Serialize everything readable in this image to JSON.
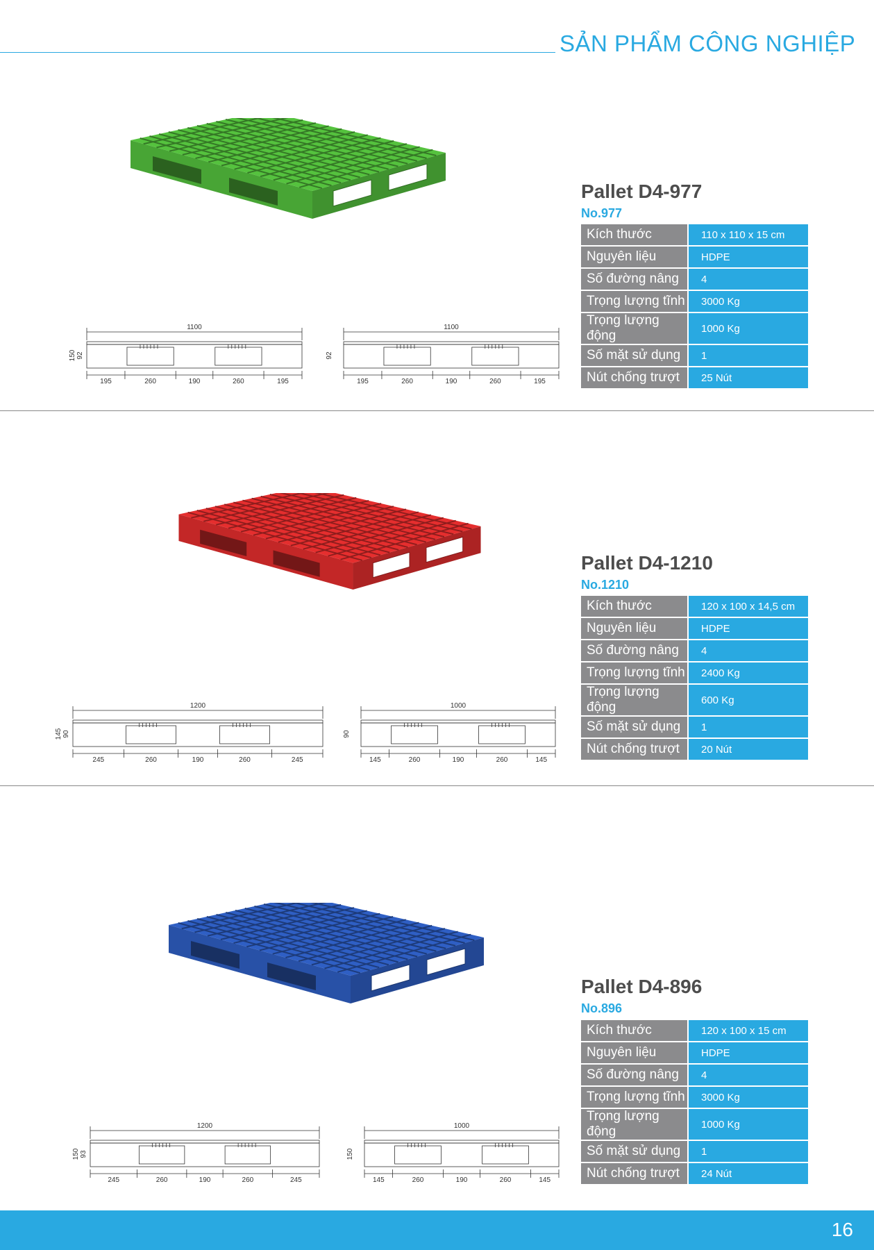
{
  "header": {
    "title": "SẢN PHẨM CÔNG NGHIỆP"
  },
  "products": [
    {
      "name": "Pallet D4-977",
      "no": "No.977",
      "color": "#55c23e",
      "specs": [
        {
          "label": "Kích thước",
          "value": "110 x 110 x 15 cm"
        },
        {
          "label": "Nguyên liệu",
          "value": "HDPE"
        },
        {
          "label": "Số đường nâng",
          "value": "4"
        },
        {
          "label": "Trọng lượng tĩnh",
          "value": "3000 Kg"
        },
        {
          "label": "Trọng lượng động",
          "value": "1000 Kg"
        },
        {
          "label": "Số mặt sử dụng",
          "value": "1"
        },
        {
          "label": "Nút chống trượt",
          "value": "25 Nút"
        }
      ],
      "drawing_left": {
        "total": "1100",
        "heights": [
          "150",
          "92"
        ],
        "segments": [
          "195",
          "260",
          "190",
          "260",
          "195"
        ]
      },
      "drawing_right": {
        "total": "1100",
        "heights": [
          "92"
        ],
        "segments": [
          "195",
          "260",
          "190",
          "260",
          "195"
        ]
      }
    },
    {
      "name": "Pallet D4-1210",
      "no": "No.1210",
      "color": "#e52e2e",
      "specs": [
        {
          "label": "Kích thước",
          "value": "120 x 100 x 14,5 cm"
        },
        {
          "label": "Nguyên liệu",
          "value": "HDPE"
        },
        {
          "label": "Số đường nâng",
          "value": "4"
        },
        {
          "label": "Trọng lượng tĩnh",
          "value": "2400 Kg"
        },
        {
          "label": "Trọng lượng động",
          "value": "600 Kg"
        },
        {
          "label": "Số mặt sử dụng",
          "value": "1"
        },
        {
          "label": "Nút chống trượt",
          "value": "20 Nút"
        }
      ],
      "drawing_left": {
        "total": "1200",
        "heights": [
          "145",
          "90"
        ],
        "segments": [
          "245",
          "260",
          "190",
          "260",
          "245"
        ]
      },
      "drawing_right": {
        "total": "1000",
        "heights": [
          "90"
        ],
        "segments": [
          "145",
          "260",
          "190",
          "260",
          "145"
        ]
      }
    },
    {
      "name": "Pallet D4-896",
      "no": "No.896",
      "color": "#2f5fc4",
      "specs": [
        {
          "label": "Kích thước",
          "value": "120 x 100 x 15 cm"
        },
        {
          "label": "Nguyên liệu",
          "value": "HDPE"
        },
        {
          "label": "Số đường nâng",
          "value": "4"
        },
        {
          "label": "Trọng lượng tĩnh",
          "value": "3000 Kg"
        },
        {
          "label": "Trọng lượng động",
          "value": "1000 Kg"
        },
        {
          "label": "Số mặt sử dụng",
          "value": "1"
        },
        {
          "label": "Nút chống trượt",
          "value": "24 Nút"
        }
      ],
      "drawing_left": {
        "total": "1200",
        "heights": [
          "150",
          "93"
        ],
        "segments": [
          "245",
          "260",
          "190",
          "260",
          "245"
        ]
      },
      "drawing_right": {
        "total": "1000",
        "heights": [
          "150"
        ],
        "segments": [
          "145",
          "260",
          "190",
          "260",
          "145"
        ]
      }
    }
  ],
  "footer": {
    "page_number": "16"
  }
}
